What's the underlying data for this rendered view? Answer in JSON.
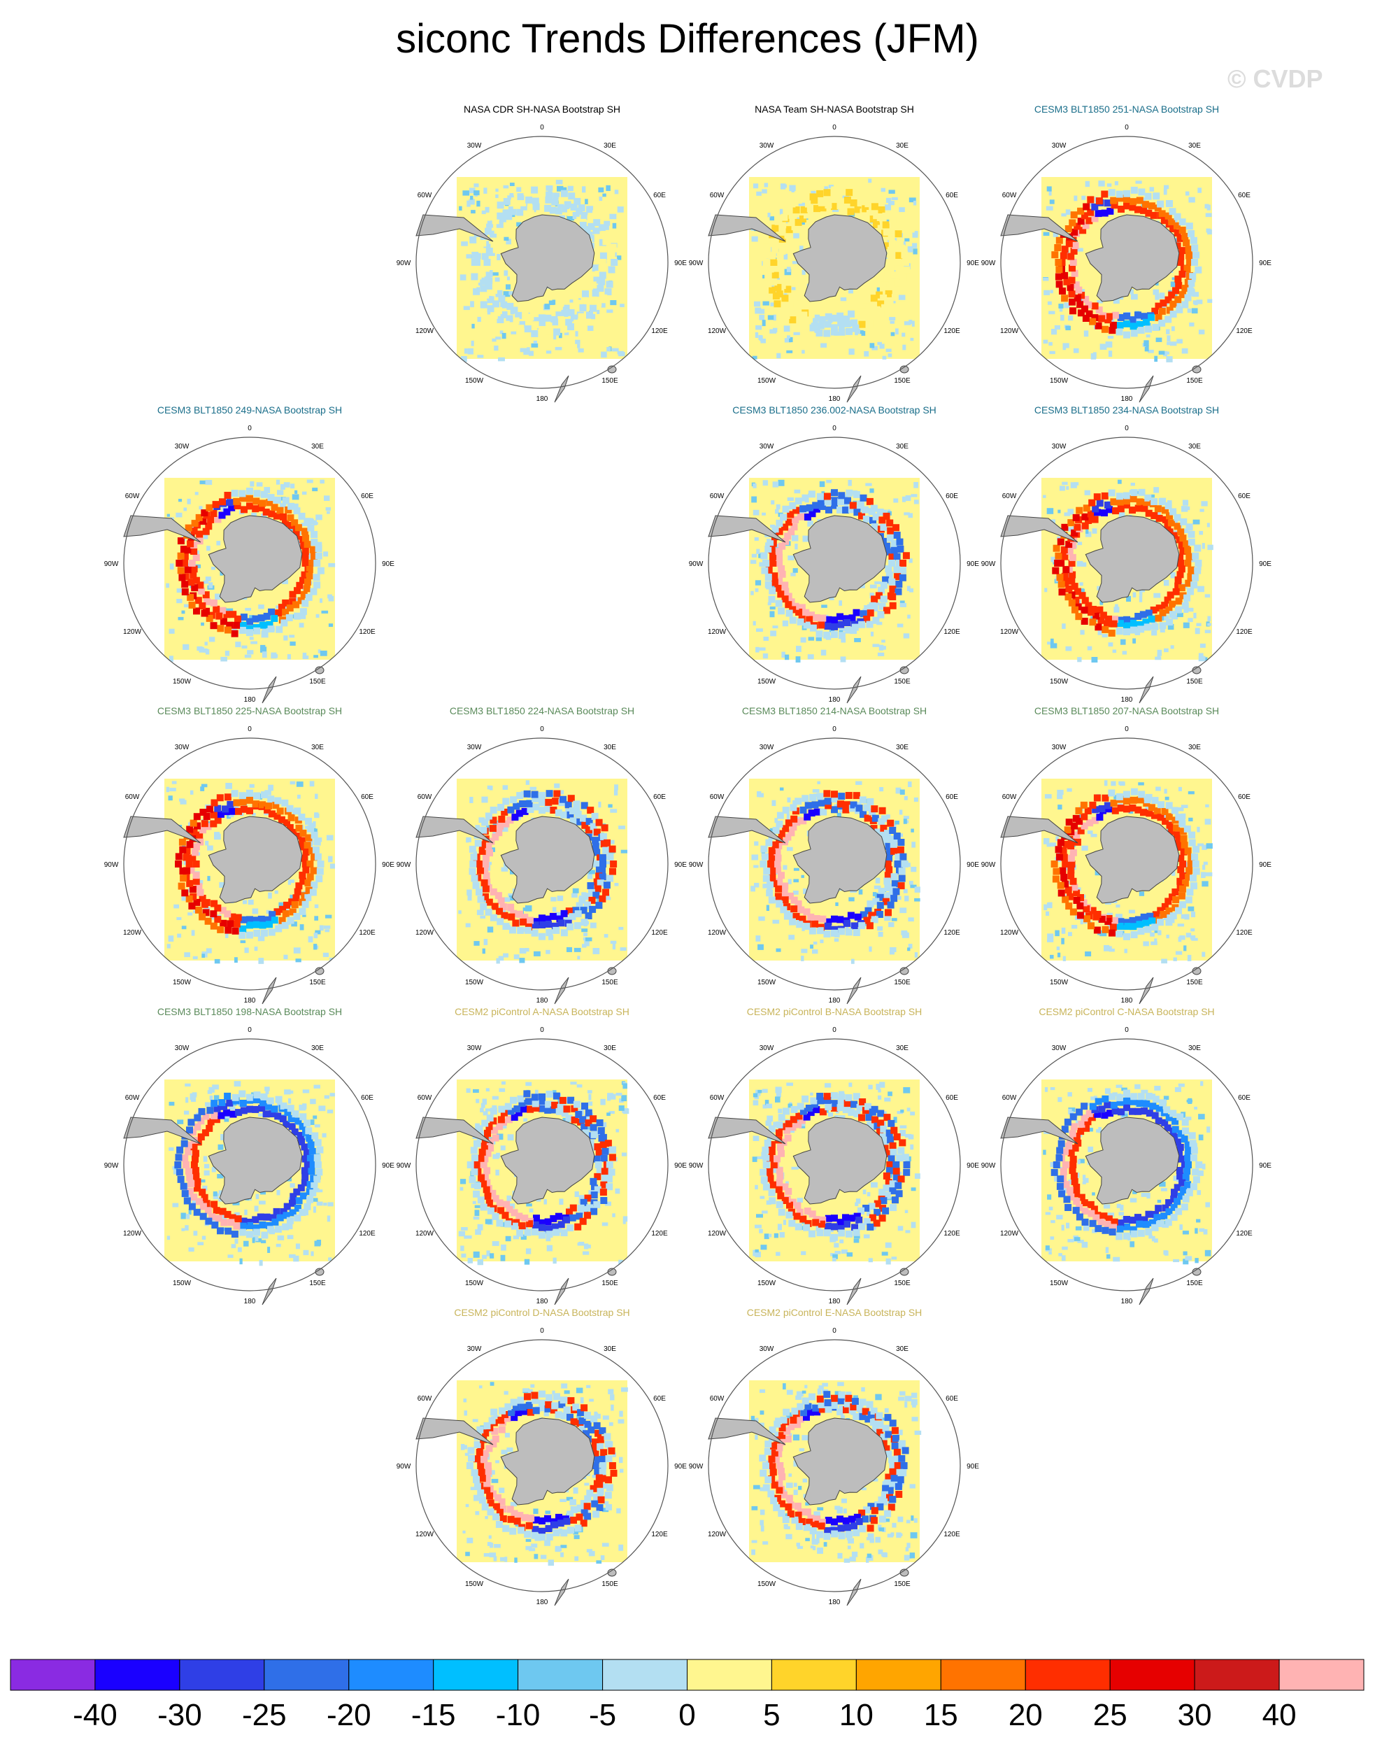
{
  "title": "siconc Trends Differences (JFM)",
  "watermark": "© CVDP",
  "colors": {
    "obs": "#000000",
    "cesm3_a": "#1a6e8a",
    "cesm3_b": "#5a8a5a",
    "cesm2": "#c8b45a",
    "land": "#bdbdbd",
    "background_field": "#fff68f"
  },
  "lon_labels": [
    "0",
    "30E",
    "60E",
    "90E",
    "120E",
    "150E",
    "180",
    "150W",
    "120W",
    "90W",
    "60W",
    "30W"
  ],
  "panels": [
    {
      "title": "NASA CDR SH-NASA Bootstrap SH",
      "group": "obs",
      "pattern": "cdr"
    },
    {
      "title": "NASA Team SH-NASA Bootstrap SH",
      "group": "obs",
      "pattern": "team"
    },
    {
      "title": "CESM3 BLT1850 251-NASA Bootstrap SH",
      "group": "cesm3_a",
      "pattern": "warm"
    },
    {
      "title": "CESM3 BLT1850 249-NASA Bootstrap SH",
      "group": "cesm3_a",
      "pattern": "warm"
    },
    {
      "title": "CESM3 BLT1850 236.002-NASA Bootstrap SH",
      "group": "cesm3_a",
      "pattern": "mixed"
    },
    {
      "title": "CESM3 BLT1850 234-NASA Bootstrap SH",
      "group": "cesm3_a",
      "pattern": "warm"
    },
    {
      "title": "CESM3 BLT1850 225-NASA Bootstrap SH",
      "group": "cesm3_b",
      "pattern": "warm"
    },
    {
      "title": "CESM3 BLT1850 224-NASA Bootstrap SH",
      "group": "cesm3_b",
      "pattern": "mixed"
    },
    {
      "title": "CESM3 BLT1850 214-NASA Bootstrap SH",
      "group": "cesm3_b",
      "pattern": "mixed"
    },
    {
      "title": "CESM3 BLT1850 207-NASA Bootstrap SH",
      "group": "cesm3_b",
      "pattern": "warm"
    },
    {
      "title": "CESM3 BLT1850 198-NASA Bootstrap SH",
      "group": "cesm3_b",
      "pattern": "cool"
    },
    {
      "title": "CESM2 piControl A-NASA Bootstrap SH",
      "group": "cesm2",
      "pattern": "mixed"
    },
    {
      "title": "CESM2 piControl B-NASA Bootstrap SH",
      "group": "cesm2",
      "pattern": "mixed"
    },
    {
      "title": "CESM2 piControl C-NASA Bootstrap SH",
      "group": "cesm2",
      "pattern": "cool"
    },
    {
      "title": "CESM2 piControl D-NASA Bootstrap SH",
      "group": "cesm2",
      "pattern": "mixed"
    },
    {
      "title": "CESM2 piControl E-NASA Bootstrap SH",
      "group": "cesm2",
      "pattern": "mixed"
    }
  ],
  "chart_data": {
    "type": "heatmap",
    "title": "siconc Trends Differences (JFM)",
    "projection": "south polar stereographic",
    "colorbar": {
      "tick_labels": [
        "-40",
        "-30",
        "-25",
        "-20",
        "-15",
        "-10",
        "-5",
        "0",
        "5",
        "10",
        "15",
        "20",
        "25",
        "30",
        "40"
      ],
      "colors": [
        "#8a2be2",
        "#1a00ff",
        "#2f3fe6",
        "#2f6fe8",
        "#1e8cff",
        "#00bfff",
        "#6ec8f0",
        "#b3dff2",
        "#fff68f",
        "#ffd42a",
        "#ffa500",
        "#ff7300",
        "#ff2e00",
        "#e60000",
        "#cc1a1a",
        "#ffb3b3"
      ]
    }
  }
}
